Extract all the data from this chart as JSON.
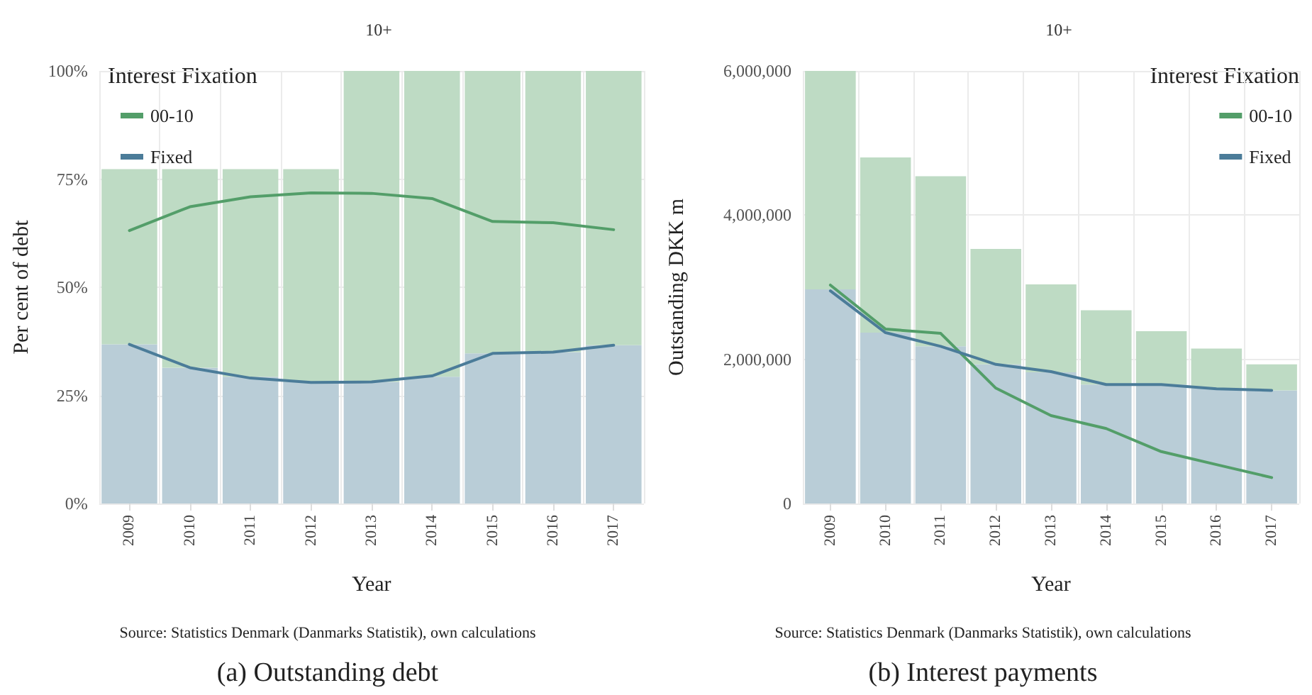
{
  "chart_data": [
    {
      "type": "bar",
      "title": "(a) Outstanding debt",
      "subtitle": "10+",
      "xlabel": "Year",
      "ylabel": "Per cent of debt",
      "legend_title": "Interest Fixation",
      "annotations": [
        "Source: Statistics Denmark (Danmarks Statistik), own calculations"
      ],
      "categories": [
        "2009",
        "2010",
        "2011",
        "2012",
        "2013",
        "2014",
        "2015",
        "2016",
        "2017"
      ],
      "stacked": true,
      "series": [
        {
          "color": "#b9cdd7",
          "values": [
            36.8,
            31.4,
            29.3,
            28.1,
            28.1,
            29.3,
            34.7,
            35.0,
            36.6
          ]
        },
        {
          "color": "#bedbc4",
          "values": [
            40.5,
            45.9,
            48.0,
            49.2,
            71.9,
            70.7,
            65.3,
            65.0,
            63.4
          ]
        },
        {
          "name": "00-10",
          "type": "line",
          "color": "#539e69",
          "values": [
            63.1,
            68.6,
            70.9,
            71.8,
            71.7,
            70.5,
            65.2,
            64.9,
            63.3
          ]
        },
        {
          "name": "Fixed",
          "type": "line",
          "color": "#4b7c99",
          "values": [
            36.8,
            31.4,
            29.0,
            28.0,
            28.1,
            29.5,
            34.7,
            35.0,
            36.6
          ]
        }
      ],
      "ylim": [
        0,
        100
      ],
      "yticks": [
        {
          "value": 0,
          "label": "0%"
        },
        {
          "value": 25,
          "label": "25%"
        },
        {
          "value": 50,
          "label": "50%"
        },
        {
          "value": 75,
          "label": "75%"
        },
        {
          "value": 100,
          "label": "100%"
        }
      ],
      "grid": true,
      "legend": "top left",
      "marker": "none"
    },
    {
      "type": "bar",
      "title": "(b) Interest payments",
      "subtitle": "10+",
      "xlabel": "Year",
      "ylabel": "Outstanding DKK m",
      "legend_title": "Interest Fixation",
      "annotations": [
        "Source: Statistics Denmark (Danmarks Statistik), own calculations"
      ],
      "categories": [
        "2009",
        "2010",
        "2011",
        "2012",
        "2013",
        "2014",
        "2015",
        "2016",
        "2017"
      ],
      "stacked": true,
      "series": [
        {
          "color": "#b9cdd7",
          "values": [
            2970000,
            2370000,
            2180000,
            1930000,
            1820000,
            1650000,
            1650000,
            1600000,
            1570000
          ]
        },
        {
          "color": "#bedbc4",
          "values": [
            3030000,
            2430000,
            2360000,
            1600000,
            1220000,
            1030000,
            740000,
            550000,
            360000
          ]
        },
        {
          "name": "00-10",
          "type": "line",
          "color": "#539e69",
          "values": [
            3030000,
            2420000,
            2360000,
            1600000,
            1220000,
            1040000,
            720000,
            540000,
            360000
          ]
        },
        {
          "name": "Fixed",
          "type": "line",
          "color": "#4b7c99",
          "values": [
            2950000,
            2370000,
            2180000,
            1930000,
            1830000,
            1650000,
            1650000,
            1590000,
            1570000
          ]
        }
      ],
      "ylim": [
        0,
        6000000
      ],
      "yticks": [
        {
          "value": 0,
          "label": "0"
        },
        {
          "value": 2000000,
          "label": "2,000,000"
        },
        {
          "value": 4000000,
          "label": "4,000,000"
        },
        {
          "value": 6000000,
          "label": "6,000,000"
        }
      ],
      "grid": true,
      "legend": "top right",
      "marker": "none"
    }
  ]
}
